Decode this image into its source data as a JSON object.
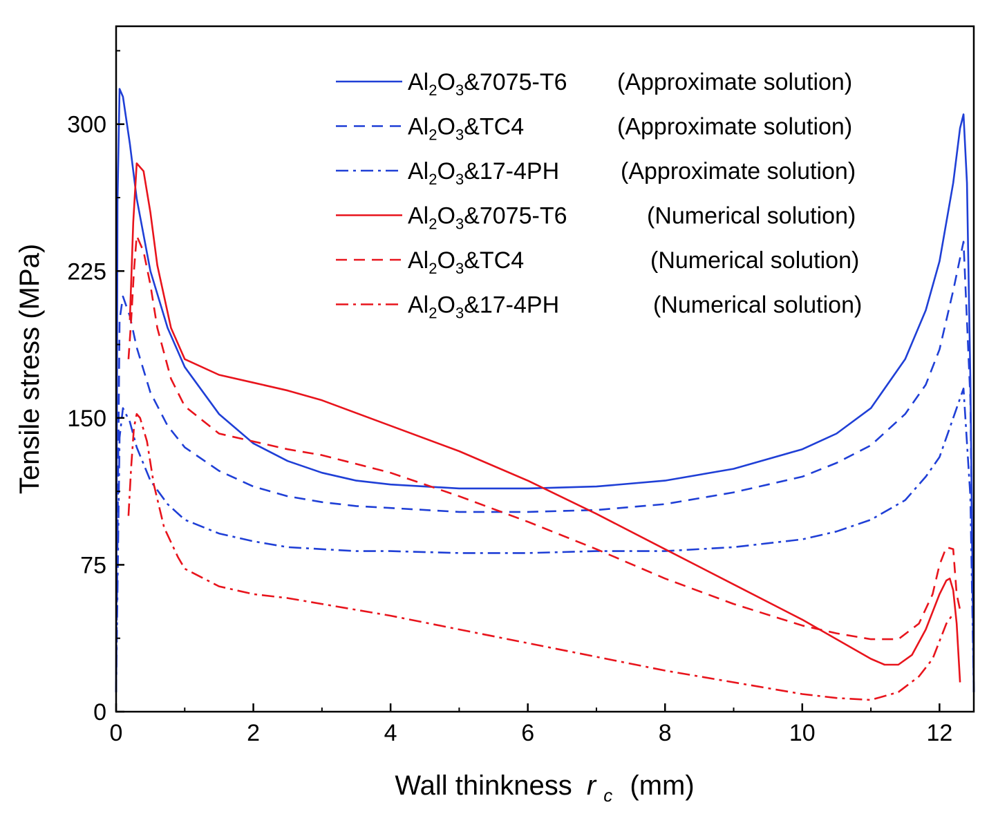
{
  "chart_data": {
    "type": "line",
    "title": "",
    "xlabel": "Wall thinkness",
    "xlabel_symbol": "r",
    "xlabel_subscript": "c",
    "xlabel_unit": "(mm)",
    "ylabel": "Tensile stress  (MPa)",
    "xlim": [
      0,
      12.5
    ],
    "ylim": [
      0,
      350
    ],
    "xticks": [
      0,
      2,
      4,
      6,
      8,
      10,
      12
    ],
    "yticks": [
      0,
      75,
      150,
      225,
      300
    ],
    "grid": false,
    "legend_position": "top-right",
    "colors": {
      "approximate": "#1f3fd6",
      "numerical": "#e8141c"
    },
    "series": [
      {
        "name": "Al2O3&7075-T6 (Approximate solution)",
        "legend": {
          "pre": "Al",
          "sub1": "2",
          "mid": "O",
          "sub2": "3",
          "rest": "&7075-T6",
          "solution": "(Approximate solution)"
        },
        "color_key": "approximate",
        "style": "solid",
        "x": [
          0.0,
          0.02,
          0.05,
          0.1,
          0.2,
          0.3,
          0.5,
          0.75,
          1.0,
          1.5,
          2.0,
          2.5,
          3.0,
          3.5,
          4.0,
          5.0,
          6.0,
          7.0,
          8.0,
          9.0,
          10.0,
          10.5,
          11.0,
          11.5,
          11.8,
          12.0,
          12.2,
          12.3,
          12.35,
          12.4,
          12.45,
          12.5
        ],
        "y": [
          10,
          260,
          318,
          314,
          290,
          262,
          225,
          196,
          176,
          152,
          137,
          128,
          122,
          118,
          116,
          114,
          114,
          115,
          118,
          124,
          134,
          142,
          155,
          180,
          205,
          230,
          270,
          298,
          305,
          270,
          170,
          10
        ]
      },
      {
        "name": "Al2O3&TC4 (Approximate solution)",
        "legend": {
          "pre": "Al",
          "sub1": "2",
          "mid": "O",
          "sub2": "3",
          "rest": "&TC4",
          "solution": "(Approximate solution)"
        },
        "color_key": "approximate",
        "style": "dashed",
        "x": [
          0.0,
          0.05,
          0.1,
          0.2,
          0.3,
          0.5,
          0.75,
          1.0,
          1.5,
          2.0,
          2.5,
          3.0,
          3.5,
          4.0,
          5.0,
          6.0,
          7.0,
          8.0,
          9.0,
          10.0,
          10.5,
          11.0,
          11.5,
          11.8,
          12.0,
          12.2,
          12.35,
          12.45,
          12.5
        ],
        "y": [
          10,
          200,
          212,
          202,
          186,
          163,
          146,
          135,
          123,
          115,
          110,
          107,
          105,
          104,
          102,
          102,
          103,
          106,
          112,
          120,
          127,
          136,
          152,
          167,
          185,
          215,
          240,
          160,
          10
        ]
      },
      {
        "name": "Al2O3&17-4PH (Approximate solution)",
        "legend": {
          "pre": "Al",
          "sub1": "2",
          "mid": "O",
          "sub2": "3",
          "rest": "&17-4PH",
          "solution": "(Approximate solution)"
        },
        "color_key": "approximate",
        "style": "dashdot",
        "x": [
          0.0,
          0.05,
          0.1,
          0.2,
          0.3,
          0.5,
          0.75,
          1.0,
          1.5,
          2.0,
          2.5,
          3.0,
          3.5,
          4.0,
          5.0,
          6.0,
          7.0,
          8.0,
          9.0,
          10.0,
          10.5,
          11.0,
          11.5,
          11.8,
          12.0,
          12.2,
          12.35,
          12.45,
          12.5
        ],
        "y": [
          10,
          140,
          155,
          148,
          135,
          118,
          106,
          98,
          91,
          87,
          84,
          83,
          82,
          82,
          81,
          81,
          82,
          82,
          84,
          88,
          92,
          98,
          108,
          120,
          130,
          150,
          165,
          110,
          10
        ]
      },
      {
        "name": "Al2O3&7075-T6 (Numerical solution)",
        "legend": {
          "pre": "Al",
          "sub1": "2",
          "mid": "O",
          "sub2": "3",
          "rest": "&7075-T6",
          "solution": "(Numerical solution)"
        },
        "color_key": "numerical",
        "style": "solid",
        "x": [
          0.2,
          0.25,
          0.3,
          0.4,
          0.5,
          0.6,
          0.8,
          1.0,
          1.5,
          2.0,
          2.5,
          3.0,
          4.0,
          5.0,
          6.0,
          7.0,
          8.0,
          9.0,
          10.0,
          10.5,
          11.0,
          11.2,
          11.4,
          11.6,
          11.8,
          12.0,
          12.1,
          12.15,
          12.2,
          12.25,
          12.3
        ],
        "y": [
          200,
          250,
          280,
          276,
          255,
          228,
          196,
          180,
          172,
          168,
          164,
          159,
          146,
          133,
          118,
          101,
          83,
          65,
          47,
          37,
          27,
          24,
          24,
          29,
          42,
          60,
          67,
          68,
          62,
          45,
          15
        ]
      },
      {
        "name": "Al2O3&TC4 (Numerical solution)",
        "legend": {
          "pre": "Al",
          "sub1": "2",
          "mid": "O",
          "sub2": "3",
          "rest": "&TC4",
          "solution": "(Numerical solution)"
        },
        "color_key": "numerical",
        "style": "dashed",
        "x": [
          0.18,
          0.22,
          0.26,
          0.3,
          0.4,
          0.5,
          0.6,
          0.8,
          1.0,
          1.5,
          2.0,
          2.5,
          3.0,
          4.0,
          5.0,
          6.0,
          7.0,
          8.0,
          9.0,
          10.0,
          10.5,
          11.0,
          11.4,
          11.7,
          11.9,
          12.0,
          12.1,
          12.2,
          12.25,
          12.3
        ],
        "y": [
          180,
          200,
          225,
          243,
          235,
          218,
          196,
          170,
          156,
          142,
          138,
          134,
          131,
          122,
          110,
          97,
          83,
          68,
          55,
          44,
          40,
          37,
          37,
          45,
          60,
          75,
          84,
          83,
          60,
          52
        ]
      },
      {
        "name": "Al2O3&17-4PH (Numerical solution)",
        "legend": {
          "pre": "Al",
          "sub1": "2",
          "mid": "O",
          "sub2": "3",
          "rest": "&17-4PH",
          "solution": "(Numerical solution)"
        },
        "color_key": "numerical",
        "style": "dashdot",
        "x": [
          0.18,
          0.22,
          0.26,
          0.3,
          0.35,
          0.45,
          0.55,
          0.7,
          0.9,
          1.0,
          1.5,
          2.0,
          2.5,
          3.0,
          4.0,
          5.0,
          6.0,
          7.0,
          8.0,
          9.0,
          10.0,
          10.5,
          11.0,
          11.4,
          11.7,
          11.9,
          12.1,
          12.2
        ],
        "y": [
          100,
          125,
          145,
          152,
          150,
          138,
          116,
          94,
          79,
          73,
          64,
          60,
          58,
          55,
          49,
          42,
          35,
          28,
          21,
          15,
          9,
          7,
          6,
          10,
          18,
          27,
          45,
          50
        ]
      }
    ]
  }
}
